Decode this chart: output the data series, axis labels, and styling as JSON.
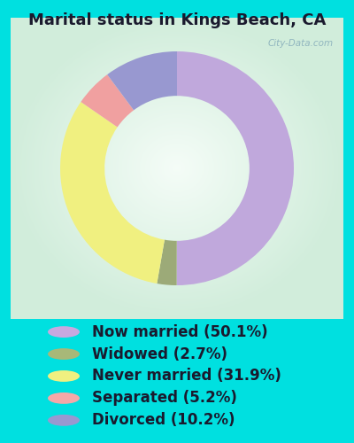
{
  "title": "Marital status in Kings Beach, CA",
  "slices": [
    50.1,
    2.7,
    31.9,
    5.2,
    10.2
  ],
  "labels": [
    "Now married (50.1%)",
    "Widowed (2.7%)",
    "Never married (31.9%)",
    "Separated (5.2%)",
    "Divorced (10.2%)"
  ],
  "colors": [
    "#c0a8dc",
    "#9caa78",
    "#f0f080",
    "#f0a0a0",
    "#9898d0"
  ],
  "legend_colors": [
    "#c8a8e0",
    "#a8b878",
    "#f0f080",
    "#f5a8a8",
    "#9898d0"
  ],
  "background_outer": "#00e0e0",
  "title_fontsize": 13,
  "legend_fontsize": 12,
  "watermark": "City-Data.com",
  "donut_width": 0.38,
  "start_angle": 90
}
